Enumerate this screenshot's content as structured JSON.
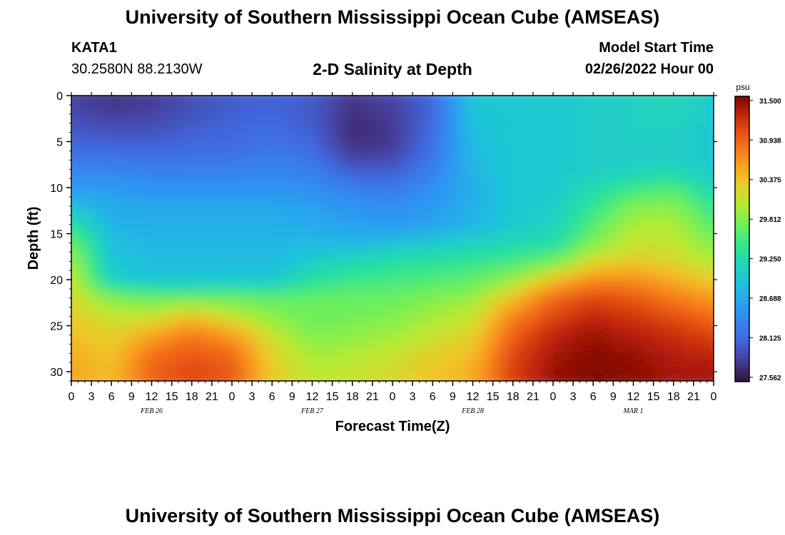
{
  "header": {
    "title": "University of Southern Mississippi Ocean Cube (AMSEAS)",
    "station": "KATA1",
    "coords": "30.2580N  88.2130W",
    "subtitle": "2-D Salinity at Depth",
    "model_start_label": "Model Start Time",
    "model_start_date": "02/26/2022 Hour 00"
  },
  "footer": {
    "title": "University of Southern Mississippi Ocean Cube (AMSEAS)"
  },
  "chart_data": {
    "type": "heatmap",
    "xlabel": "Forecast Time(Z)",
    "ylabel": "Depth (ft)",
    "x_ticks": [
      "0",
      "3",
      "6",
      "9",
      "12",
      "15",
      "18",
      "21",
      "0",
      "3",
      "6",
      "9",
      "12",
      "15",
      "18",
      "21",
      "0",
      "3",
      "6",
      "9",
      "12",
      "15",
      "18",
      "21",
      "0",
      "3",
      "6",
      "9",
      "12",
      "15",
      "18",
      "21",
      "0"
    ],
    "x_range_hours": [
      0,
      96
    ],
    "day_labels": [
      {
        "label": "FEB 26",
        "hour": 12
      },
      {
        "label": "FEB 27",
        "hour": 36
      },
      {
        "label": "FEB 28",
        "hour": 60
      },
      {
        "label": "MAR 1",
        "hour": 84
      }
    ],
    "y_ticks": [
      0,
      5,
      10,
      15,
      20,
      25,
      30
    ],
    "ylim": [
      0,
      31
    ],
    "colorbar": {
      "unit": "psu",
      "ticks": [
        "31.500",
        "30.938",
        "30.375",
        "29.812",
        "29.250",
        "28.688",
        "28.125",
        "27.562"
      ],
      "min": 27.5,
      "max": 31.56
    },
    "hours": [
      0,
      6,
      12,
      18,
      24,
      30,
      36,
      42,
      48,
      54,
      60,
      66,
      72,
      78,
      84,
      90,
      96
    ],
    "depths": [
      0,
      2,
      4,
      6,
      8,
      10,
      12,
      14,
      16,
      18,
      20,
      22,
      24,
      26,
      28,
      30
    ],
    "values": [
      [
        27.8,
        27.7,
        27.75,
        27.9,
        28.0,
        28.05,
        28.0,
        27.75,
        27.85,
        28.1,
        29.0,
        29.0,
        29.0,
        29.05,
        29.1,
        29.2,
        29.0
      ],
      [
        27.9,
        27.8,
        27.85,
        27.95,
        28.05,
        28.1,
        28.0,
        27.7,
        27.8,
        28.1,
        28.95,
        29.0,
        29.0,
        29.05,
        29.1,
        29.15,
        29.0
      ],
      [
        28.0,
        27.95,
        27.95,
        28.05,
        28.1,
        28.15,
        28.05,
        27.65,
        27.75,
        28.15,
        28.9,
        29.0,
        29.0,
        29.05,
        29.1,
        29.1,
        29.0
      ],
      [
        28.15,
        28.15,
        28.1,
        28.15,
        28.15,
        28.25,
        28.15,
        27.75,
        27.8,
        28.2,
        28.85,
        29.0,
        29.0,
        29.05,
        29.05,
        29.05,
        29.0
      ],
      [
        28.35,
        28.35,
        28.3,
        28.3,
        28.3,
        28.35,
        28.3,
        28.0,
        28.0,
        28.3,
        28.8,
        29.0,
        29.0,
        29.05,
        29.1,
        29.15,
        29.0
      ],
      [
        28.55,
        28.55,
        28.5,
        28.5,
        28.5,
        28.5,
        28.45,
        28.3,
        28.25,
        28.45,
        28.75,
        29.0,
        29.0,
        29.2,
        29.45,
        29.55,
        29.15
      ],
      [
        28.9,
        28.7,
        28.65,
        28.65,
        28.65,
        28.65,
        28.6,
        28.5,
        28.45,
        28.55,
        28.75,
        29.0,
        29.05,
        29.4,
        29.8,
        29.85,
        29.4
      ],
      [
        29.35,
        28.75,
        28.75,
        28.75,
        28.75,
        28.75,
        28.7,
        28.6,
        28.55,
        28.6,
        28.8,
        29.0,
        29.1,
        29.6,
        30.0,
        30.0,
        29.6
      ],
      [
        29.7,
        28.9,
        28.8,
        28.8,
        28.8,
        28.8,
        28.85,
        28.8,
        28.9,
        29.0,
        29.1,
        29.2,
        29.25,
        29.8,
        30.1,
        30.1,
        29.8
      ],
      [
        29.95,
        28.95,
        28.85,
        28.85,
        28.85,
        28.85,
        29.05,
        29.2,
        29.3,
        29.35,
        29.4,
        29.5,
        29.7,
        30.2,
        30.3,
        30.2,
        30.0
      ],
      [
        30.1,
        29.1,
        28.95,
        28.95,
        29.0,
        29.0,
        29.3,
        29.45,
        29.5,
        29.55,
        29.65,
        29.9,
        30.4,
        30.7,
        30.7,
        30.5,
        30.3
      ],
      [
        30.2,
        29.8,
        29.7,
        29.7,
        29.7,
        29.65,
        29.7,
        29.7,
        29.7,
        29.8,
        29.9,
        30.4,
        30.9,
        31.1,
        31.0,
        30.8,
        30.6
      ],
      [
        30.3,
        30.1,
        30.1,
        30.4,
        30.1,
        29.85,
        29.7,
        29.75,
        29.8,
        29.95,
        30.1,
        30.75,
        31.1,
        31.3,
        31.2,
        31.05,
        30.9
      ],
      [
        30.4,
        30.25,
        30.55,
        30.8,
        30.6,
        30.1,
        29.8,
        29.85,
        29.95,
        30.1,
        30.25,
        30.95,
        31.3,
        31.45,
        31.35,
        31.25,
        31.1
      ],
      [
        30.5,
        30.35,
        30.85,
        31.0,
        30.9,
        30.25,
        29.95,
        30.0,
        30.1,
        30.25,
        30.4,
        31.1,
        31.4,
        31.5,
        31.45,
        31.35,
        31.3
      ],
      [
        30.55,
        30.4,
        30.95,
        31.1,
        31.0,
        30.3,
        30.05,
        30.1,
        30.2,
        30.35,
        30.5,
        31.15,
        31.45,
        31.55,
        31.5,
        31.4,
        31.4
      ]
    ]
  }
}
